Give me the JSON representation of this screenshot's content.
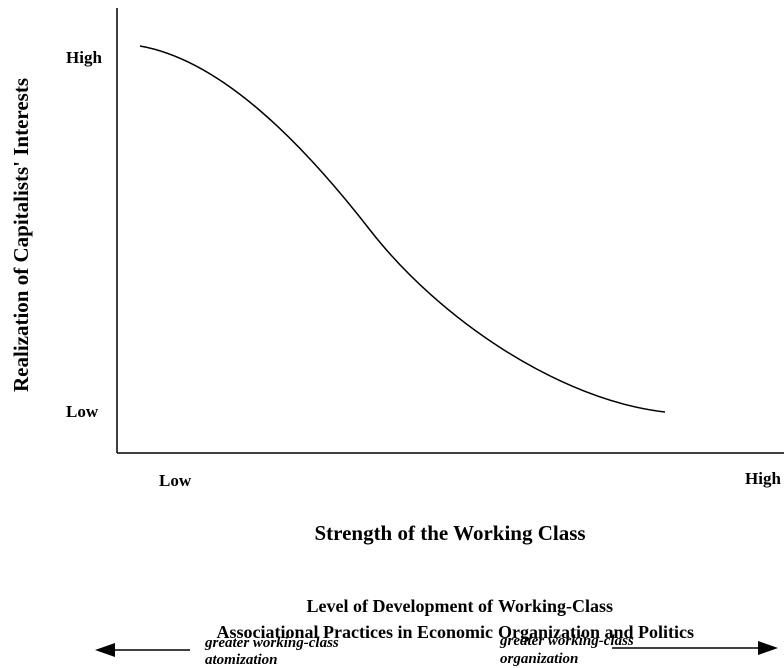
{
  "y_axis": {
    "label": "Realization of Capitalists' Interests",
    "high": "High",
    "low": "Low"
  },
  "x_axis": {
    "label": "Strength of the Working Class",
    "low": "Low",
    "high": "High"
  },
  "lower_label": {
    "left_lines": [
      "Level of Development of",
      "Associational Practices in Economic"
    ],
    "right_lines": [
      "Working-Class",
      "Organization and Politics"
    ]
  },
  "left_arrow": {
    "lines": [
      "greater working-class",
      "atomization"
    ]
  },
  "right_arrow": {
    "lines": [
      "greater working-class",
      "organization"
    ]
  }
}
